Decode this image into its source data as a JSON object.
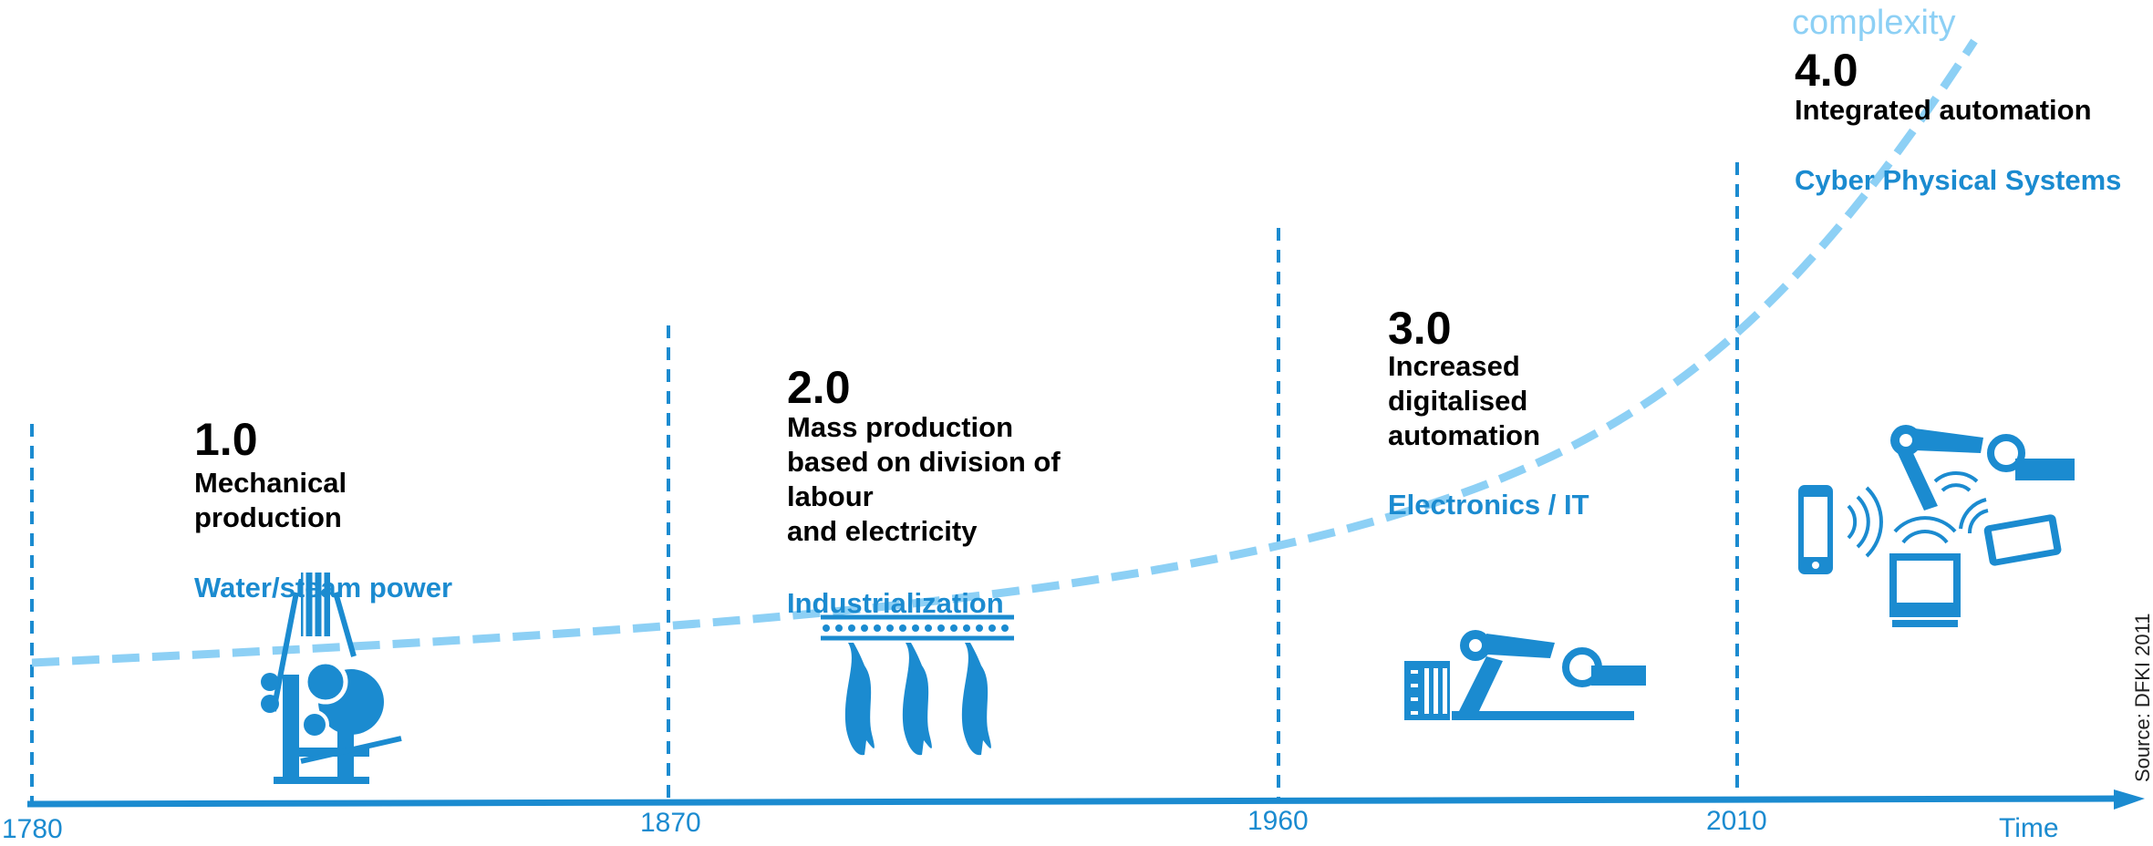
{
  "colors": {
    "primary": "#1b8bd0",
    "curve": "#8dd0f5",
    "text": "#000000"
  },
  "axis": {
    "years": [
      "1780",
      "1870",
      "1960",
      "2010"
    ],
    "label": "Time"
  },
  "curve_label": "complexity",
  "eras": [
    {
      "version": "1.0",
      "description": "Mechanical\nproduction",
      "category": "Water/steam power",
      "icon": "steam-loom-icon"
    },
    {
      "version": "2.0",
      "description": "Mass production\nbased on division of\nlabour\nand electricity",
      "category": "Industrialization",
      "icon": "conveyor-line-icon"
    },
    {
      "version": "3.0",
      "description": "Increased\ndigitalised\nautomation",
      "category": "Electronics / IT",
      "icon": "robot-arm-icon"
    },
    {
      "version": "4.0",
      "description": "Integrated automation",
      "category": "Cyber Physical Systems",
      "icon": "connected-devices-icon"
    }
  ],
  "source": "Source: DFKI 2011"
}
